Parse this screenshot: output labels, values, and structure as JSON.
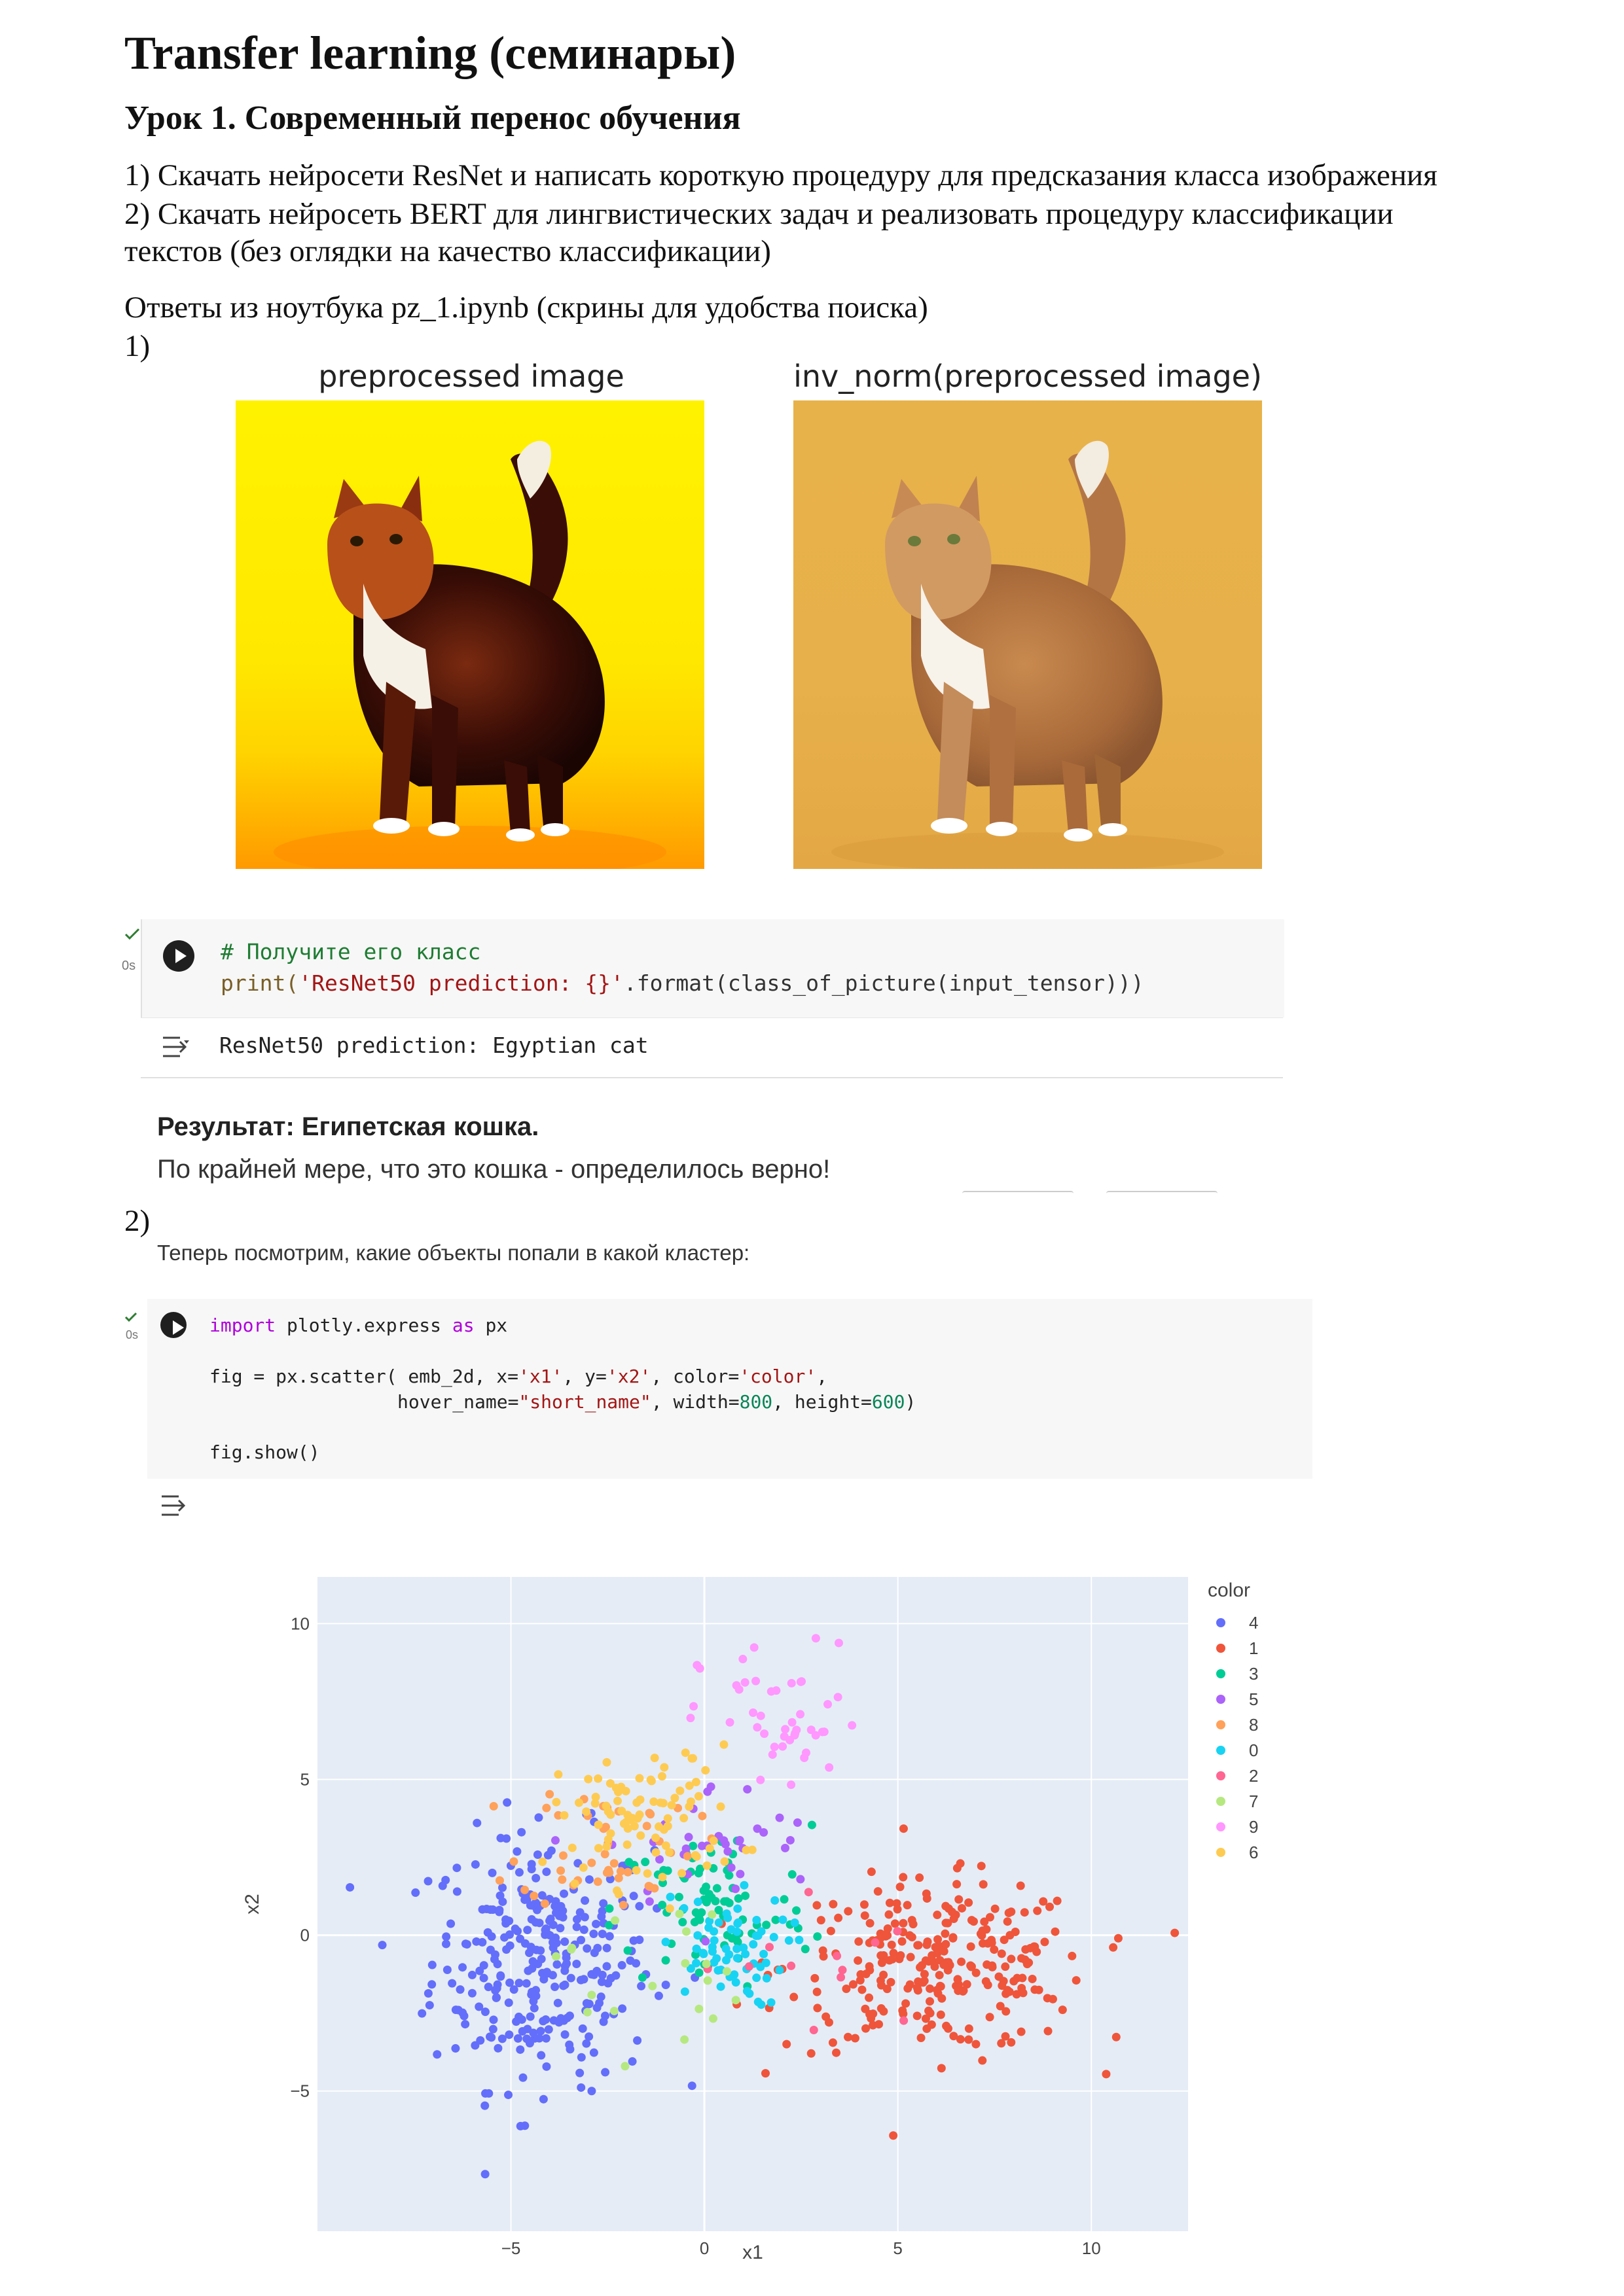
{
  "doc": {
    "title": "Transfer learning (семинары)",
    "lesson": "Урок 1. Современный перенос обучения",
    "task1": "1) Скачать нейросети ResNet и написать короткую процедуру для предсказания класса изображения",
    "task2_line1": "2) Скачать нейросеть BERT для лингвистических задач и реализовать процедуру классификации",
    "task2_line2": "текстов (без оглядки на качество классификации)",
    "answers": "Ответы из ноутбука  pz_1.ipynb (скрины для удобства поиска)",
    "mark1": "1)",
    "mark2": "2)"
  },
  "figure1": {
    "left_title": "preprocessed image",
    "right_title": "inv_norm(preprocessed image)"
  },
  "cell1": {
    "status": "0s",
    "comment": "# Получите его класс",
    "code_fn": "print(",
    "code_str": "'ResNet50 prediction: {}'",
    "code_rest": ".format(class_of_picture(input_tensor)))",
    "output": "ResNet50 prediction: Egyptian cat"
  },
  "result": {
    "heading": "Результат: Египетская кошка.",
    "text": "По крайней мере, что это кошка - определилось верно!"
  },
  "section2": {
    "intro": "Теперь посмотрим, какие объекты попали в какой кластер:"
  },
  "cell2": {
    "status": "0s",
    "line1_kw": "import",
    "line1_mod": " plotly.express ",
    "line1_as": "as",
    "line1_alias": " px",
    "line2a": "fig = px.scatter( emb_2d, x=",
    "line2_x": "'x1'",
    "line2b": ", y=",
    "line2_y": "'x2'",
    "line2c": ", color=",
    "line2_c": "'color'",
    "line2d": ",",
    "line3a": "hover_name=",
    "line3_h": "\"short_name\"",
    "line3b": ", width=",
    "line3_w": "800",
    "line3c": ", height=",
    "line3_hv": "600",
    "line3d": ")",
    "line4": "fig.show()"
  },
  "colors": {
    "0": "#19d3f3",
    "1": "#ef553b",
    "2": "#ff6692",
    "3": "#00cc96",
    "4": "#636efa",
    "5": "#ab63fa",
    "6": "#fecb52",
    "7": "#b6e880",
    "8": "#ffa15a",
    "9": "#ff97ff"
  },
  "chart_data": {
    "type": "scatter",
    "xlabel": "x1",
    "ylabel": "x2",
    "legend_title": "color",
    "legend_order": [
      "4",
      "1",
      "3",
      "5",
      "8",
      "0",
      "2",
      "7",
      "9",
      "6"
    ],
    "xlim": [
      -10,
      12.5
    ],
    "ylim": [
      -9.5,
      11.5
    ],
    "x_ticks": [
      -5,
      0,
      5,
      10
    ],
    "y_ticks": [
      -5,
      0,
      5,
      10
    ],
    "series": [
      {
        "name": "4",
        "center": [
          -4.2,
          -0.8
        ],
        "spread": [
          1.9,
          2.7
        ],
        "count": 300
      },
      {
        "name": "1",
        "center": [
          6.0,
          -1.0
        ],
        "spread": [
          2.6,
          1.8
        ],
        "count": 270
      },
      {
        "name": "3",
        "center": [
          0.2,
          0.8
        ],
        "spread": [
          1.7,
          1.8
        ],
        "count": 85
      },
      {
        "name": "5",
        "center": [
          0.3,
          2.8
        ],
        "spread": [
          1.9,
          1.4
        ],
        "count": 35
      },
      {
        "name": "8",
        "center": [
          -2.5,
          3.0
        ],
        "spread": [
          1.5,
          1.4
        ],
        "count": 45
      },
      {
        "name": "0",
        "center": [
          0.5,
          -0.5
        ],
        "spread": [
          1.1,
          1.2
        ],
        "count": 65
      },
      {
        "name": "2",
        "center": [
          3.0,
          -1.0
        ],
        "spread": [
          2.0,
          1.8
        ],
        "count": 12
      },
      {
        "name": "7",
        "center": [
          -1.5,
          -1.2
        ],
        "spread": [
          1.6,
          1.8
        ],
        "count": 20
      },
      {
        "name": "9",
        "center": [
          2.0,
          6.8
        ],
        "spread": [
          1.4,
          1.7
        ],
        "count": 45
      },
      {
        "name": "6",
        "center": [
          -1.5,
          3.8
        ],
        "spread": [
          1.6,
          1.5
        ],
        "count": 90
      }
    ]
  }
}
